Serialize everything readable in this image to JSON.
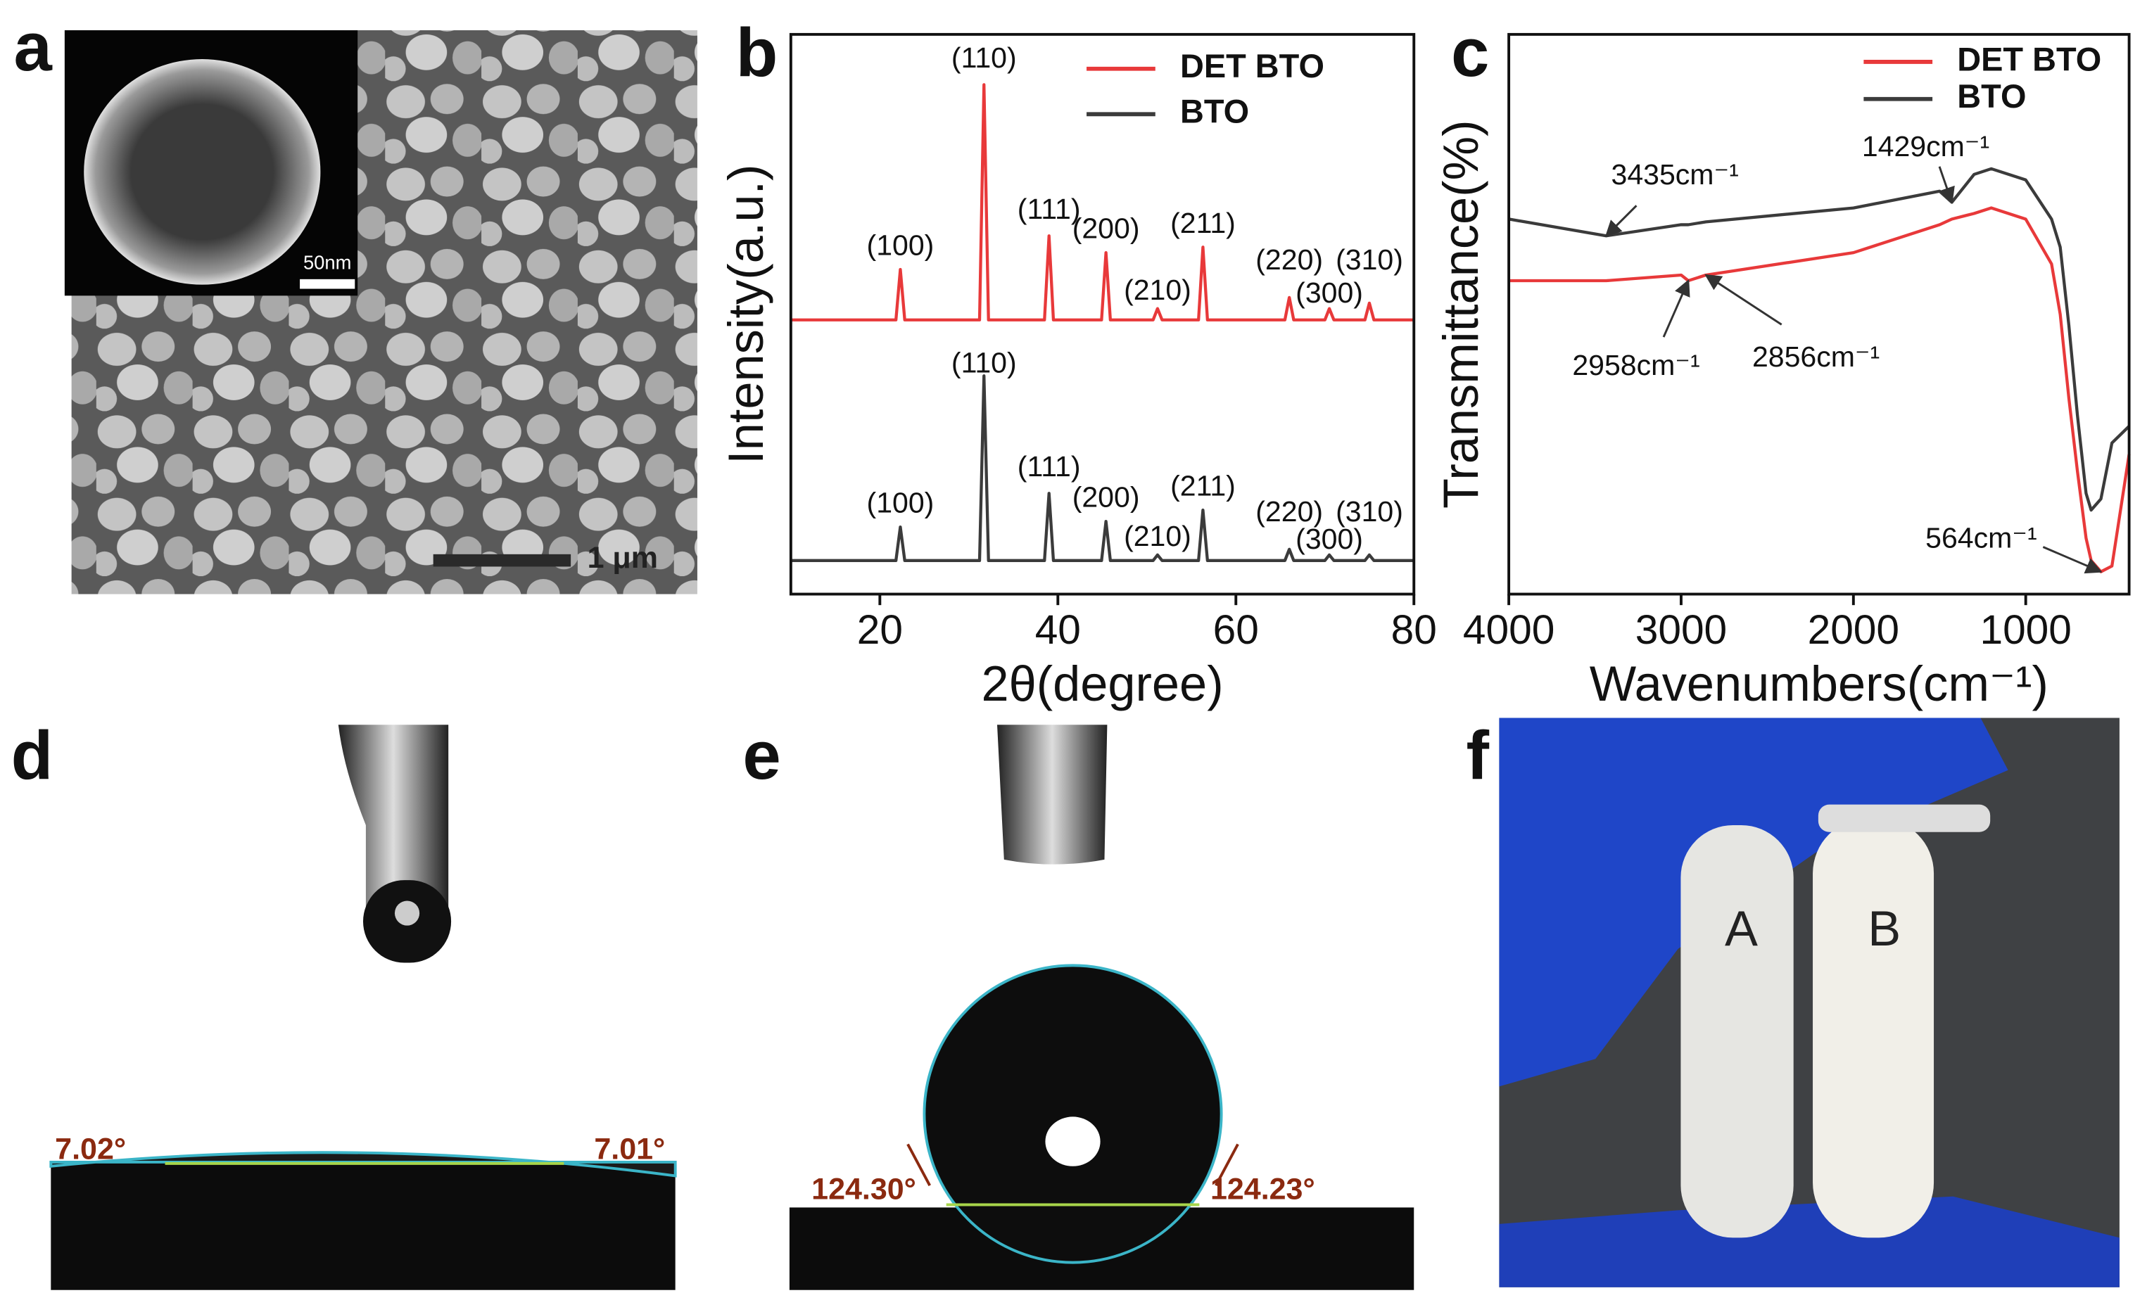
{
  "panels": {
    "a": {
      "letter": "a",
      "scale_bar": "1 μm",
      "inset_scale_bar": "50nm"
    },
    "b": {
      "letter": "b"
    },
    "c": {
      "letter": "c"
    },
    "d": {
      "letter": "d",
      "left_angle": "7.02°",
      "right_angle": "7.01°"
    },
    "e": {
      "letter": "e",
      "left_angle": "124.30°",
      "right_angle": "124.23°"
    },
    "f": {
      "letter": "f",
      "tube_a": "A",
      "tube_b": "B"
    }
  },
  "chart_data": [
    {
      "type": "line",
      "xlabel": "2θ(degree)",
      "ylabel": "Intensity(a.u.)",
      "xlim": [
        10,
        80
      ],
      "xticks": [
        20,
        40,
        60,
        80
      ],
      "ylim": [
        0,
        100
      ],
      "x": [
        10,
        21.8,
        22.3,
        22.8,
        31.2,
        31.7,
        32.2,
        38.5,
        39,
        39.5,
        44.9,
        45.4,
        45.9,
        50.7,
        51.2,
        51.7,
        55.8,
        56.3,
        56.8,
        65.5,
        66,
        66.5,
        70,
        70.5,
        71,
        74.5,
        75,
        75.5,
        80
      ],
      "series": [
        {
          "name": "DET BTO",
          "color": "#e8393a",
          "values": [
            49,
            49,
            58,
            49,
            49,
            91,
            49,
            49,
            64,
            49,
            49,
            61,
            49,
            49,
            51,
            49,
            49,
            62,
            49,
            49,
            53,
            49,
            49,
            51,
            49,
            49,
            52,
            49,
            49
          ],
          "annotations": [
            {
              "text": "(100)",
              "x": 22.3
            },
            {
              "text": "(110)",
              "x": 31.7
            },
            {
              "text": "(111)",
              "x": 39
            },
            {
              "text": "(200)",
              "x": 45.4
            },
            {
              "text": "(210)",
              "x": 51.2
            },
            {
              "text": "(211)",
              "x": 56.3
            },
            {
              "text": "(220)",
              "x": 66
            },
            {
              "text": "(300)",
              "x": 70.5
            },
            {
              "text": "(310)",
              "x": 75
            }
          ]
        },
        {
          "name": "BTO",
          "color": "#3b3b3b",
          "values": [
            6,
            6,
            12,
            6,
            6,
            39,
            6,
            6,
            18,
            6,
            6,
            13,
            6,
            6,
            7,
            6,
            6,
            15,
            6,
            6,
            8,
            6,
            6,
            7,
            6,
            6,
            7,
            6,
            6
          ],
          "annotations": [
            {
              "text": "(100)",
              "x": 22.3
            },
            {
              "text": "(110)",
              "x": 31.7
            },
            {
              "text": "(111)",
              "x": 39
            },
            {
              "text": "(200)",
              "x": 45.4
            },
            {
              "text": "(210)",
              "x": 51.2
            },
            {
              "text": "(211)",
              "x": 56.3
            },
            {
              "text": "(220)",
              "x": 66
            },
            {
              "text": "(300)",
              "x": 70.5
            },
            {
              "text": "(310)",
              "x": 75
            }
          ]
        }
      ]
    },
    {
      "type": "line",
      "xlabel": "Wavenumbers(cm⁻¹)",
      "ylabel": "Transmittance(%)",
      "xlim": [
        4000,
        400
      ],
      "xticks": [
        4000,
        3000,
        2000,
        1000
      ],
      "ylim": [
        0,
        100
      ],
      "x": [
        4000,
        3435,
        3000,
        2958,
        2856,
        2000,
        1500,
        1429,
        1300,
        1200,
        1000,
        850,
        800,
        750,
        700,
        650,
        620,
        564,
        500,
        400
      ],
      "series": [
        {
          "name": "DET BTO",
          "color": "#e8393a",
          "values": [
            56,
            56,
            57,
            56,
            57,
            61,
            66,
            67,
            68,
            69,
            67,
            59,
            50,
            35,
            22,
            10,
            6,
            4,
            5,
            25
          ],
          "annotations": [
            {
              "text": "2958cm⁻¹",
              "x": 2958
            },
            {
              "text": "2856cm⁻¹",
              "x": 2856
            },
            {
              "text": "564cm⁻¹",
              "x": 564
            }
          ]
        },
        {
          "name": "BTO",
          "color": "#3b3b3b",
          "values": [
            67,
            64,
            66,
            66,
            66.5,
            69,
            72,
            70,
            75,
            76,
            74,
            67,
            62,
            48,
            32,
            18,
            15,
            17,
            27,
            30
          ],
          "annotations": [
            {
              "text": "3435cm⁻¹",
              "x": 3435
            },
            {
              "text": "1429cm⁻¹",
              "x": 1429
            }
          ]
        }
      ]
    }
  ]
}
